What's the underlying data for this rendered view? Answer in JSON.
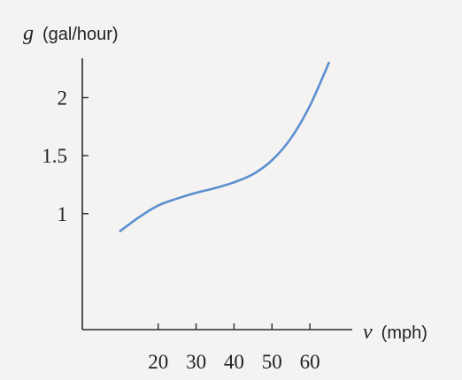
{
  "chart_data": {
    "type": "line",
    "title": "",
    "xlabel": {
      "var": "v",
      "unit": "(mph)"
    },
    "ylabel": {
      "var": "g",
      "unit": "(gal/hour)"
    },
    "xlim": [
      0,
      70
    ],
    "ylim": [
      0,
      2.4
    ],
    "xticks": [
      20,
      30,
      40,
      50,
      60
    ],
    "yticks": [
      {
        "value": 1,
        "label": "1"
      },
      {
        "value": 1.5,
        "label": "1.5"
      },
      {
        "value": 2,
        "label": "2"
      }
    ],
    "grid": false,
    "series": [
      {
        "color": "#5b8fd0",
        "x": [
          10,
          15,
          20,
          25,
          30,
          35,
          40,
          45,
          50,
          55,
          60,
          65
        ],
        "y": [
          0.85,
          0.97,
          1.07,
          1.13,
          1.18,
          1.22,
          1.27,
          1.34,
          1.46,
          1.65,
          1.93,
          2.3
        ]
      }
    ]
  }
}
